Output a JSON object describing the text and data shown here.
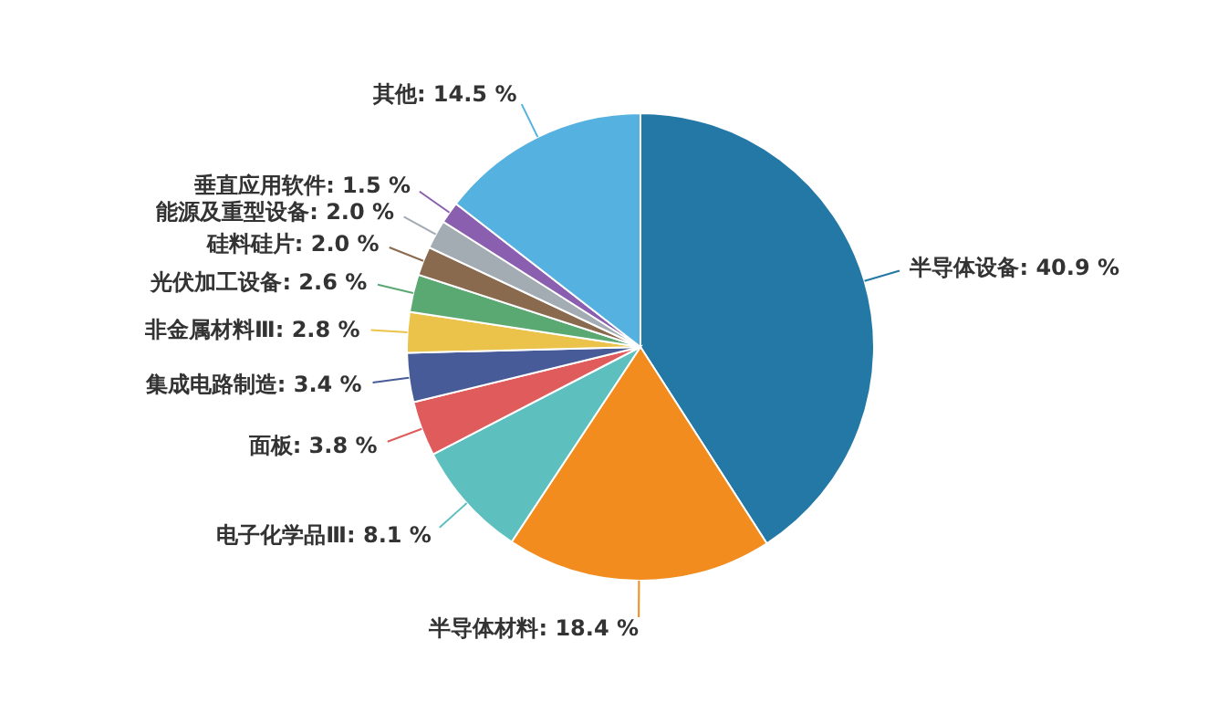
{
  "chart_data": {
    "type": "pie",
    "categories": [
      "半导体设备",
      "半导体材料",
      "电子化学品Ⅲ",
      "面板",
      "集成电路制造",
      "非金属材料Ⅲ",
      "光伏加工设备",
      "硅料硅片",
      "能源及重型设备",
      "垂直应用软件",
      "其他"
    ],
    "values": [
      40.9,
      18.4,
      8.1,
      3.8,
      3.4,
      2.8,
      2.6,
      2.0,
      2.0,
      1.5,
      14.5
    ],
    "value_labels": [
      "40.9 %",
      "18.4 %",
      "8.1 %",
      "3.8 %",
      "3.4 %",
      "2.8 %",
      "2.6 %",
      "2.0 %",
      "2.0 %",
      "1.5 %",
      "14.5 %"
    ],
    "colors": [
      "#2478a6",
      "#f28c1e",
      "#5ebfbf",
      "#e05c5c",
      "#485b99",
      "#ebc24a",
      "#5aa872",
      "#8a6a4f",
      "#a3abb3",
      "#8a5fb0",
      "#55b1df"
    ]
  }
}
